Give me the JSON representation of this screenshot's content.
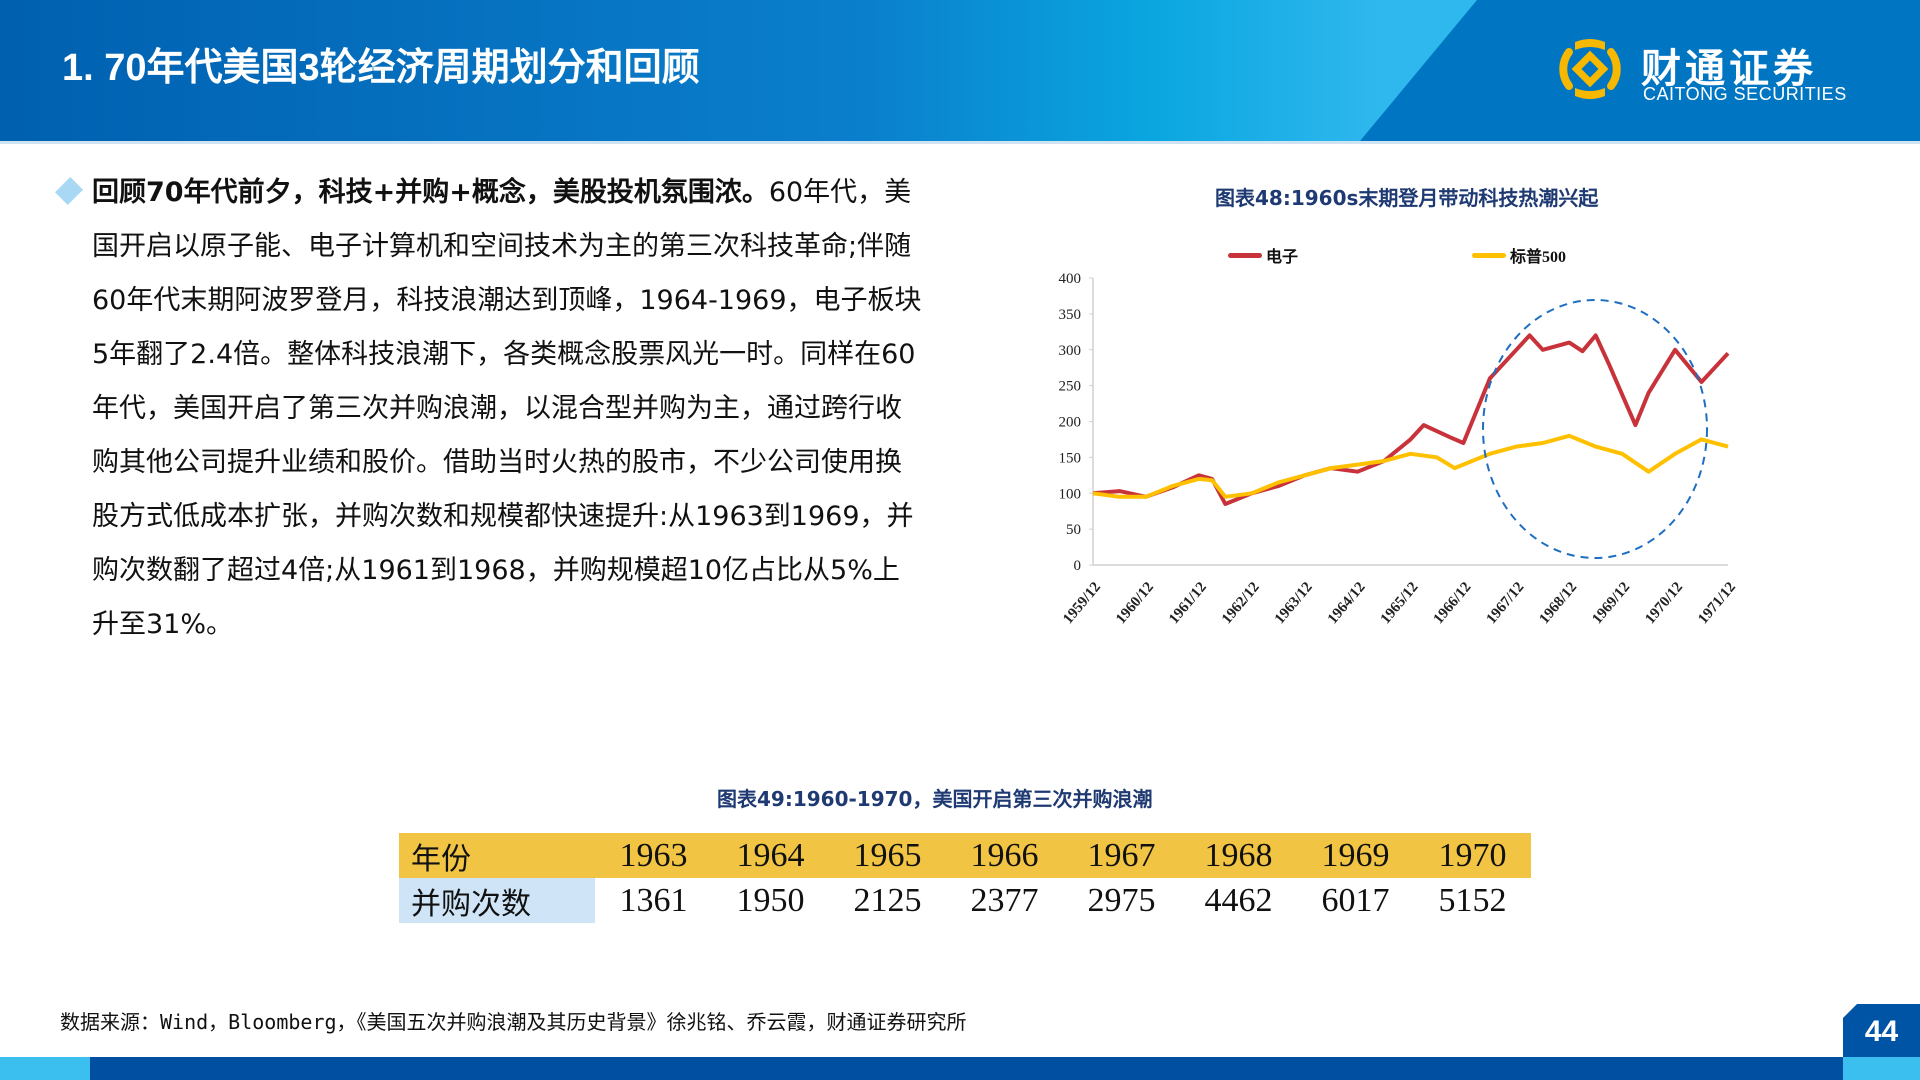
{
  "header": {
    "title": "1. 70年代美国3轮经济周期划分和回顾",
    "logo_cn": "财通证券",
    "logo_en": "CAITONG SECURITIES",
    "logo_icon": "caitong-logo-icon"
  },
  "body": {
    "bullet_icon": "diamond-bullet-icon",
    "lead": "回顾70年代前夕，科技+并购+概念，美股投机氛围浓。",
    "text": "60年代，美国开启以原子能、电子计算机和空间技术为主的第三次科技革命;伴随60年代末期阿波罗登月，科技浪潮达到顶峰，1964-1969，电子板块5年翻了2.4倍。整体科技浪潮下，各类概念股票风光一时。同样在60年代，美国开启了第三次并购浪潮，以混合型并购为主，通过跨行收购其他公司提升业绩和股价。借助当时火热的股市，不少公司使用换股方式低成本扩张，并购次数和规模都快速提升:从1963到1969，并购次数翻了超过4倍;从1961到1968，并购规模超10亿占比从5%上升至31%。"
  },
  "chart": {
    "title": "图表48:1960s末期登月带动科技热潮兴起",
    "legend": [
      {
        "label": "电子",
        "color": "#c8323a"
      },
      {
        "label": "标普500",
        "color": "#ffc000"
      }
    ],
    "highlight_color": "#1f6fc0"
  },
  "chart_data": {
    "type": "line",
    "title": "图表48:1960s末期登月带动科技热潮兴起",
    "xlabel": "",
    "ylabel": "",
    "ylim": [
      0,
      400
    ],
    "yticks": [
      0,
      50,
      100,
      150,
      200,
      250,
      300,
      350,
      400
    ],
    "xticks": [
      "1959/12",
      "1960/12",
      "1961/12",
      "1962/12",
      "1963/12",
      "1964/12",
      "1965/12",
      "1966/12",
      "1967/12",
      "1968/12",
      "1969/12",
      "1970/12",
      "1971/12"
    ],
    "grid": false,
    "legend_position": "top",
    "annotation": "dashed ellipse highlighting 1966/12–1970/06",
    "series": [
      {
        "name": "电子",
        "color": "#c8323a",
        "points": [
          [
            "1959/12",
            100
          ],
          [
            "1960/06",
            103
          ],
          [
            "1960/12",
            95
          ],
          [
            "1961/06",
            108
          ],
          [
            "1961/12",
            125
          ],
          [
            "1962/03",
            120
          ],
          [
            "1962/06",
            85
          ],
          [
            "1962/12",
            100
          ],
          [
            "1963/06",
            110
          ],
          [
            "1963/12",
            125
          ],
          [
            "1964/06",
            135
          ],
          [
            "1964/12",
            130
          ],
          [
            "1965/06",
            145
          ],
          [
            "1965/12",
            175
          ],
          [
            "1966/03",
            195
          ],
          [
            "1966/09",
            178
          ],
          [
            "1966/12",
            170
          ],
          [
            "1967/06",
            260
          ],
          [
            "1967/12",
            300
          ],
          [
            "1968/03",
            320
          ],
          [
            "1968/06",
            300
          ],
          [
            "1968/12",
            310
          ],
          [
            "1969/03",
            298
          ],
          [
            "1969/06",
            320
          ],
          [
            "1969/09",
            280
          ],
          [
            "1970/03",
            195
          ],
          [
            "1970/06",
            240
          ],
          [
            "1970/12",
            300
          ],
          [
            "1971/06",
            255
          ],
          [
            "1971/12",
            295
          ]
        ]
      },
      {
        "name": "标普500",
        "color": "#ffc000",
        "points": [
          [
            "1959/12",
            100
          ],
          [
            "1960/06",
            95
          ],
          [
            "1960/12",
            95
          ],
          [
            "1961/06",
            110
          ],
          [
            "1961/12",
            120
          ],
          [
            "1962/03",
            118
          ],
          [
            "1962/06",
            95
          ],
          [
            "1962/12",
            100
          ],
          [
            "1963/06",
            115
          ],
          [
            "1963/12",
            125
          ],
          [
            "1964/06",
            135
          ],
          [
            "1964/12",
            140
          ],
          [
            "1965/06",
            145
          ],
          [
            "1965/12",
            155
          ],
          [
            "1966/06",
            150
          ],
          [
            "1966/10",
            135
          ],
          [
            "1967/06",
            155
          ],
          [
            "1967/12",
            165
          ],
          [
            "1968/06",
            170
          ],
          [
            "1968/12",
            180
          ],
          [
            "1969/06",
            165
          ],
          [
            "1969/12",
            155
          ],
          [
            "1970/06",
            130
          ],
          [
            "1970/12",
            155
          ],
          [
            "1971/06",
            175
          ],
          [
            "1971/12",
            165
          ]
        ]
      }
    ]
  },
  "table": {
    "title": "图表49:1960-1970，美国开启第三次并购浪潮",
    "header_label": "年份",
    "row_label": "并购次数",
    "years": [
      "1963",
      "1964",
      "1965",
      "1966",
      "1967",
      "1968",
      "1969",
      "1970"
    ],
    "counts": [
      "1361",
      "1950",
      "2125",
      "2377",
      "2975",
      "4462",
      "6017",
      "5152"
    ],
    "header_color": "#f2c443",
    "label_color": "#cfe5f7"
  },
  "footer": {
    "source": "数据来源：Wind，Bloomberg，《美国五次并购浪潮及其历史背景》徐兆铭、乔云霞，财通证券研究所",
    "page_number": "44"
  }
}
